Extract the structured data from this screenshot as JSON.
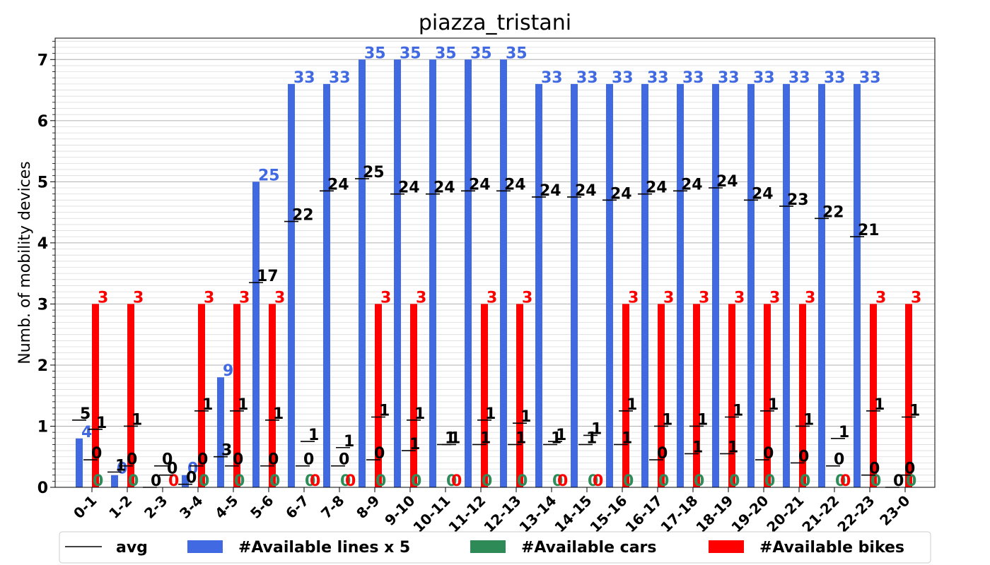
{
  "chart_data": {
    "type": "bar",
    "title": "piazza_tristani",
    "xlabel": "",
    "ylabel": "Numb. of mobility devices",
    "ylim": [
      0,
      7.35
    ],
    "yticks": [
      "0",
      "1",
      "2",
      "3",
      "4",
      "5",
      "6",
      "7"
    ],
    "grid": true,
    "legend_position": "bottom",
    "categories": [
      "0-1",
      "1-2",
      "2-3",
      "3-4",
      "4-5",
      "5-6",
      "6-7",
      "7-8",
      "8-9",
      "9-10",
      "10-11",
      "11-12",
      "12-13",
      "13-14",
      "14-15",
      "15-16",
      "16-17",
      "17-18",
      "18-19",
      "19-20",
      "20-21",
      "21-22",
      "22-23",
      "23-0"
    ],
    "series": [
      {
        "name": "#Available lines x 5",
        "color": "#4169e1",
        "values": [
          0.8,
          0.2,
          0,
          0.2,
          1.8,
          5,
          6.6,
          6.6,
          7,
          7,
          7,
          7,
          7,
          6.6,
          6.6,
          6.6,
          6.6,
          6.6,
          6.6,
          6.6,
          6.6,
          6.6,
          6.6,
          0
        ],
        "labels": [
          "4",
          "0",
          "",
          "0",
          "9",
          "25",
          "33",
          "33",
          "35",
          "35",
          "35",
          "35",
          "35",
          "33",
          "33",
          "33",
          "33",
          "33",
          "33",
          "33",
          "33",
          "33",
          "33",
          ""
        ],
        "avg": [
          1.1,
          0.25,
          0,
          0.05,
          0.5,
          3.35,
          4.35,
          4.85,
          5.05,
          4.8,
          4.8,
          4.85,
          4.85,
          4.75,
          4.75,
          4.7,
          4.8,
          4.85,
          4.9,
          4.7,
          4.6,
          4.4,
          4.1,
          0
        ],
        "avg_labels": [
          "5",
          "1",
          "0",
          "0",
          "3",
          "17",
          "22",
          "24",
          "25",
          "24",
          "24",
          "24",
          "24",
          "24",
          "24",
          "24",
          "24",
          "24",
          "24",
          "24",
          "23",
          "22",
          "21",
          "0"
        ]
      },
      {
        "name": "#Available cars",
        "color": "#2e8b57",
        "values": [
          0,
          0,
          0,
          0,
          0,
          0,
          0,
          0,
          0,
          0,
          0,
          0,
          0,
          0,
          0,
          0,
          0,
          0,
          0,
          0,
          0,
          0,
          0,
          0
        ],
        "labels": [
          "0",
          "0",
          "",
          "0",
          "0",
          "0",
          "0",
          "0",
          "0",
          "0",
          "0",
          "0",
          "0",
          "0",
          "0",
          "0",
          "0",
          "0",
          "0",
          "0",
          "0",
          "0",
          "0",
          "0"
        ],
        "avg": [
          0.45,
          0.35,
          0.35,
          0.35,
          0.35,
          0.35,
          0.35,
          0.35,
          0.45,
          0.6,
          0.7,
          0.7,
          0.7,
          0.7,
          0.7,
          0.7,
          0.45,
          0.55,
          0.55,
          0.45,
          0.4,
          0.35,
          0.2,
          0.2
        ],
        "avg_labels": [
          "0",
          "0",
          "0",
          "0",
          "0",
          "0",
          "0",
          "0",
          "0",
          "1",
          "1",
          "1",
          "1",
          "1",
          "1",
          "1",
          "0",
          "1",
          "1",
          "0",
          "0",
          "0",
          "0",
          "0"
        ]
      },
      {
        "name": "#Available bikes",
        "color": "#ff0000",
        "values": [
          3,
          3,
          0,
          3,
          3,
          3,
          0,
          0,
          3,
          3,
          0,
          3,
          3,
          0,
          0,
          3,
          3,
          3,
          3,
          3,
          3,
          0,
          3,
          3
        ],
        "labels": [
          "3",
          "3",
          "0",
          "3",
          "3",
          "3",
          "0",
          "0",
          "3",
          "3",
          "0",
          "3",
          "3",
          "0",
          "0",
          "3",
          "3",
          "3",
          "3",
          "3",
          "3",
          "0",
          "3",
          "3"
        ],
        "avg": [
          0.95,
          1,
          0.2,
          1.25,
          1.25,
          1.1,
          0.75,
          0.65,
          1.15,
          1.1,
          0.7,
          1.1,
          1.05,
          0.75,
          0.85,
          1.25,
          1.0,
          1.0,
          1.15,
          1.25,
          1.0,
          0.8,
          1.25,
          1.15
        ],
        "avg_labels": [
          "1",
          "1",
          "0",
          "1",
          "1",
          "1",
          "1",
          "1",
          "1",
          "1",
          "1",
          "1",
          "1",
          "1",
          "1",
          "1",
          "1",
          "1",
          "1",
          "1",
          "1",
          "1",
          "1",
          "1"
        ]
      }
    ],
    "legend": [
      {
        "label": "avg",
        "kind": "line",
        "color": "#000000"
      },
      {
        "label": "#Available lines x 5",
        "kind": "box",
        "color": "#4169e1"
      },
      {
        "label": "#Available cars",
        "kind": "box",
        "color": "#2e8b57"
      },
      {
        "label": "#Available bikes",
        "kind": "box",
        "color": "#ff0000"
      }
    ]
  }
}
